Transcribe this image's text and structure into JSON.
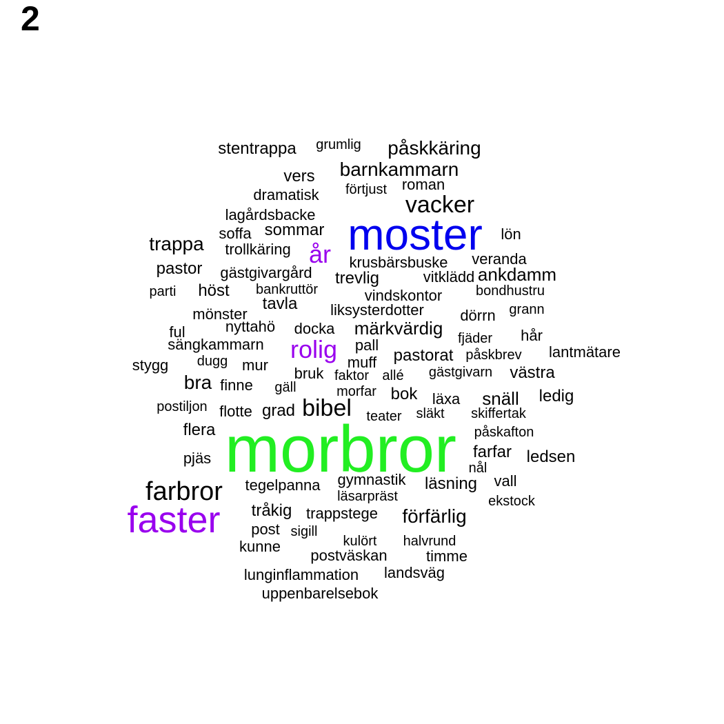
{
  "panel_label": "2",
  "colors": {
    "default": "#000000",
    "green": "#22ee22",
    "blue": "#0000ee",
    "purple": "#9900ee"
  },
  "words": [
    {
      "text": "morbror",
      "color": "green"
    },
    {
      "text": "moster",
      "color": "blue"
    },
    {
      "text": "faster",
      "color": "purple"
    },
    {
      "text": "år",
      "color": "purple"
    },
    {
      "text": "rolig",
      "color": "purple"
    },
    {
      "text": "farbror"
    },
    {
      "text": "vacker"
    },
    {
      "text": "bibel"
    },
    {
      "text": "barnkammarn"
    },
    {
      "text": "påskkäring"
    },
    {
      "text": "trappa"
    },
    {
      "text": "förfärlig"
    },
    {
      "text": "bra"
    },
    {
      "text": "stentrappa"
    },
    {
      "text": "märkvärdig"
    },
    {
      "text": "pastorat"
    },
    {
      "text": "snäll"
    },
    {
      "text": "ankdamm"
    },
    {
      "text": "trevlig"
    },
    {
      "text": "pastor"
    },
    {
      "text": "höst"
    },
    {
      "text": "sommar"
    },
    {
      "text": "flera"
    },
    {
      "text": "bok"
    },
    {
      "text": "tråkig"
    },
    {
      "text": "gymnastik"
    },
    {
      "text": "läsning"
    },
    {
      "text": "ledsen"
    },
    {
      "text": "farfar"
    },
    {
      "text": "västra"
    },
    {
      "text": "ledig"
    },
    {
      "text": "tavla"
    },
    {
      "text": "grad"
    },
    {
      "text": "vers"
    },
    {
      "text": "läxa"
    },
    {
      "text": "roman"
    },
    {
      "text": "grumlig"
    },
    {
      "text": "dramatisk"
    },
    {
      "text": "förtjust"
    },
    {
      "text": "lagårdsbacke"
    },
    {
      "text": "soffa"
    },
    {
      "text": "lön"
    },
    {
      "text": "trollkäring"
    },
    {
      "text": "krusbärsbuske"
    },
    {
      "text": "veranda"
    },
    {
      "text": "gästgivargård"
    },
    {
      "text": "vitklädd"
    },
    {
      "text": "parti"
    },
    {
      "text": "bankruttör"
    },
    {
      "text": "vindskontor"
    },
    {
      "text": "bondhustru"
    },
    {
      "text": "mönster"
    },
    {
      "text": "liksysterdotter"
    },
    {
      "text": "grann"
    },
    {
      "text": "dörrn"
    },
    {
      "text": "ful"
    },
    {
      "text": "nyttahö"
    },
    {
      "text": "docka"
    },
    {
      "text": "hår"
    },
    {
      "text": "fjäder"
    },
    {
      "text": "sängkammarn"
    },
    {
      "text": "pall"
    },
    {
      "text": "lantmätare"
    },
    {
      "text": "stygg"
    },
    {
      "text": "dugg"
    },
    {
      "text": "mur"
    },
    {
      "text": "muff"
    },
    {
      "text": "påskbrev"
    },
    {
      "text": "bruk"
    },
    {
      "text": "faktor"
    },
    {
      "text": "allé"
    },
    {
      "text": "gästgivarn"
    },
    {
      "text": "finne"
    },
    {
      "text": "gäll"
    },
    {
      "text": "morfar"
    },
    {
      "text": "postiljon"
    },
    {
      "text": "flotte"
    },
    {
      "text": "teater"
    },
    {
      "text": "släkt"
    },
    {
      "text": "skiffertak"
    },
    {
      "text": "påskafton"
    },
    {
      "text": "pjäs"
    },
    {
      "text": "nål"
    },
    {
      "text": "vall"
    },
    {
      "text": "tegelpanna"
    },
    {
      "text": "läsarpräst"
    },
    {
      "text": "ekstock"
    },
    {
      "text": "trappstege"
    },
    {
      "text": "post"
    },
    {
      "text": "sigill"
    },
    {
      "text": "kulört"
    },
    {
      "text": "halvrund"
    },
    {
      "text": "kunne"
    },
    {
      "text": "postväskan"
    },
    {
      "text": "timme"
    },
    {
      "text": "landsväg"
    },
    {
      "text": "lunginflammation"
    },
    {
      "text": "uppenbarelsebok"
    }
  ]
}
